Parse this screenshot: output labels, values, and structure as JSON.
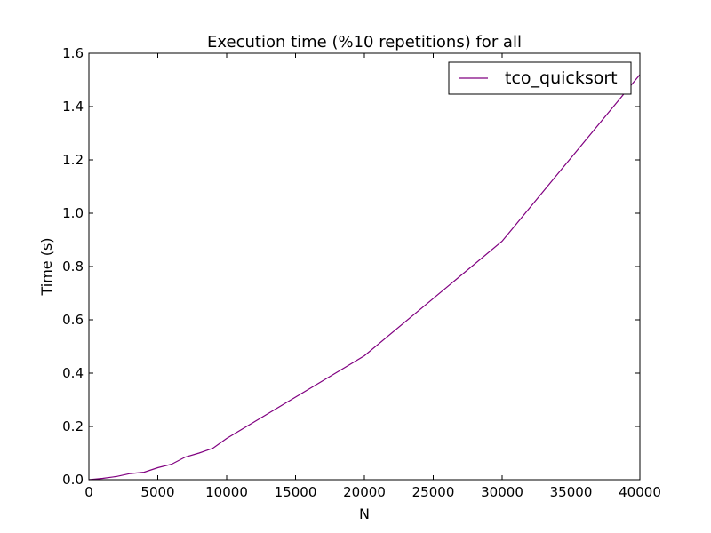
{
  "chart_data": {
    "type": "line",
    "title": "Execution time (%10 repetitions) for all",
    "xlabel": "N",
    "ylabel": "Time (s)",
    "xlim": [
      0,
      40000
    ],
    "ylim": [
      0.0,
      1.6
    ],
    "xticks": [
      "0",
      "5000",
      "10000",
      "15000",
      "20000",
      "25000",
      "30000",
      "35000",
      "40000"
    ],
    "yticks": [
      "0.0",
      "0.2",
      "0.4",
      "0.6",
      "0.8",
      "1.0",
      "1.2",
      "1.4",
      "1.6"
    ],
    "grid": false,
    "legend_position": "top-right",
    "series": [
      {
        "name": "tco_quicksort",
        "color": "#800080",
        "x": [
          0,
          1000,
          2000,
          3000,
          4000,
          5000,
          6000,
          7000,
          8000,
          9000,
          10000,
          20000,
          30000,
          40000
        ],
        "y": [
          0.0,
          0.005,
          0.012,
          0.023,
          0.028,
          0.045,
          0.058,
          0.085,
          0.1,
          0.118,
          0.155,
          0.465,
          0.895,
          1.52
        ]
      }
    ]
  }
}
